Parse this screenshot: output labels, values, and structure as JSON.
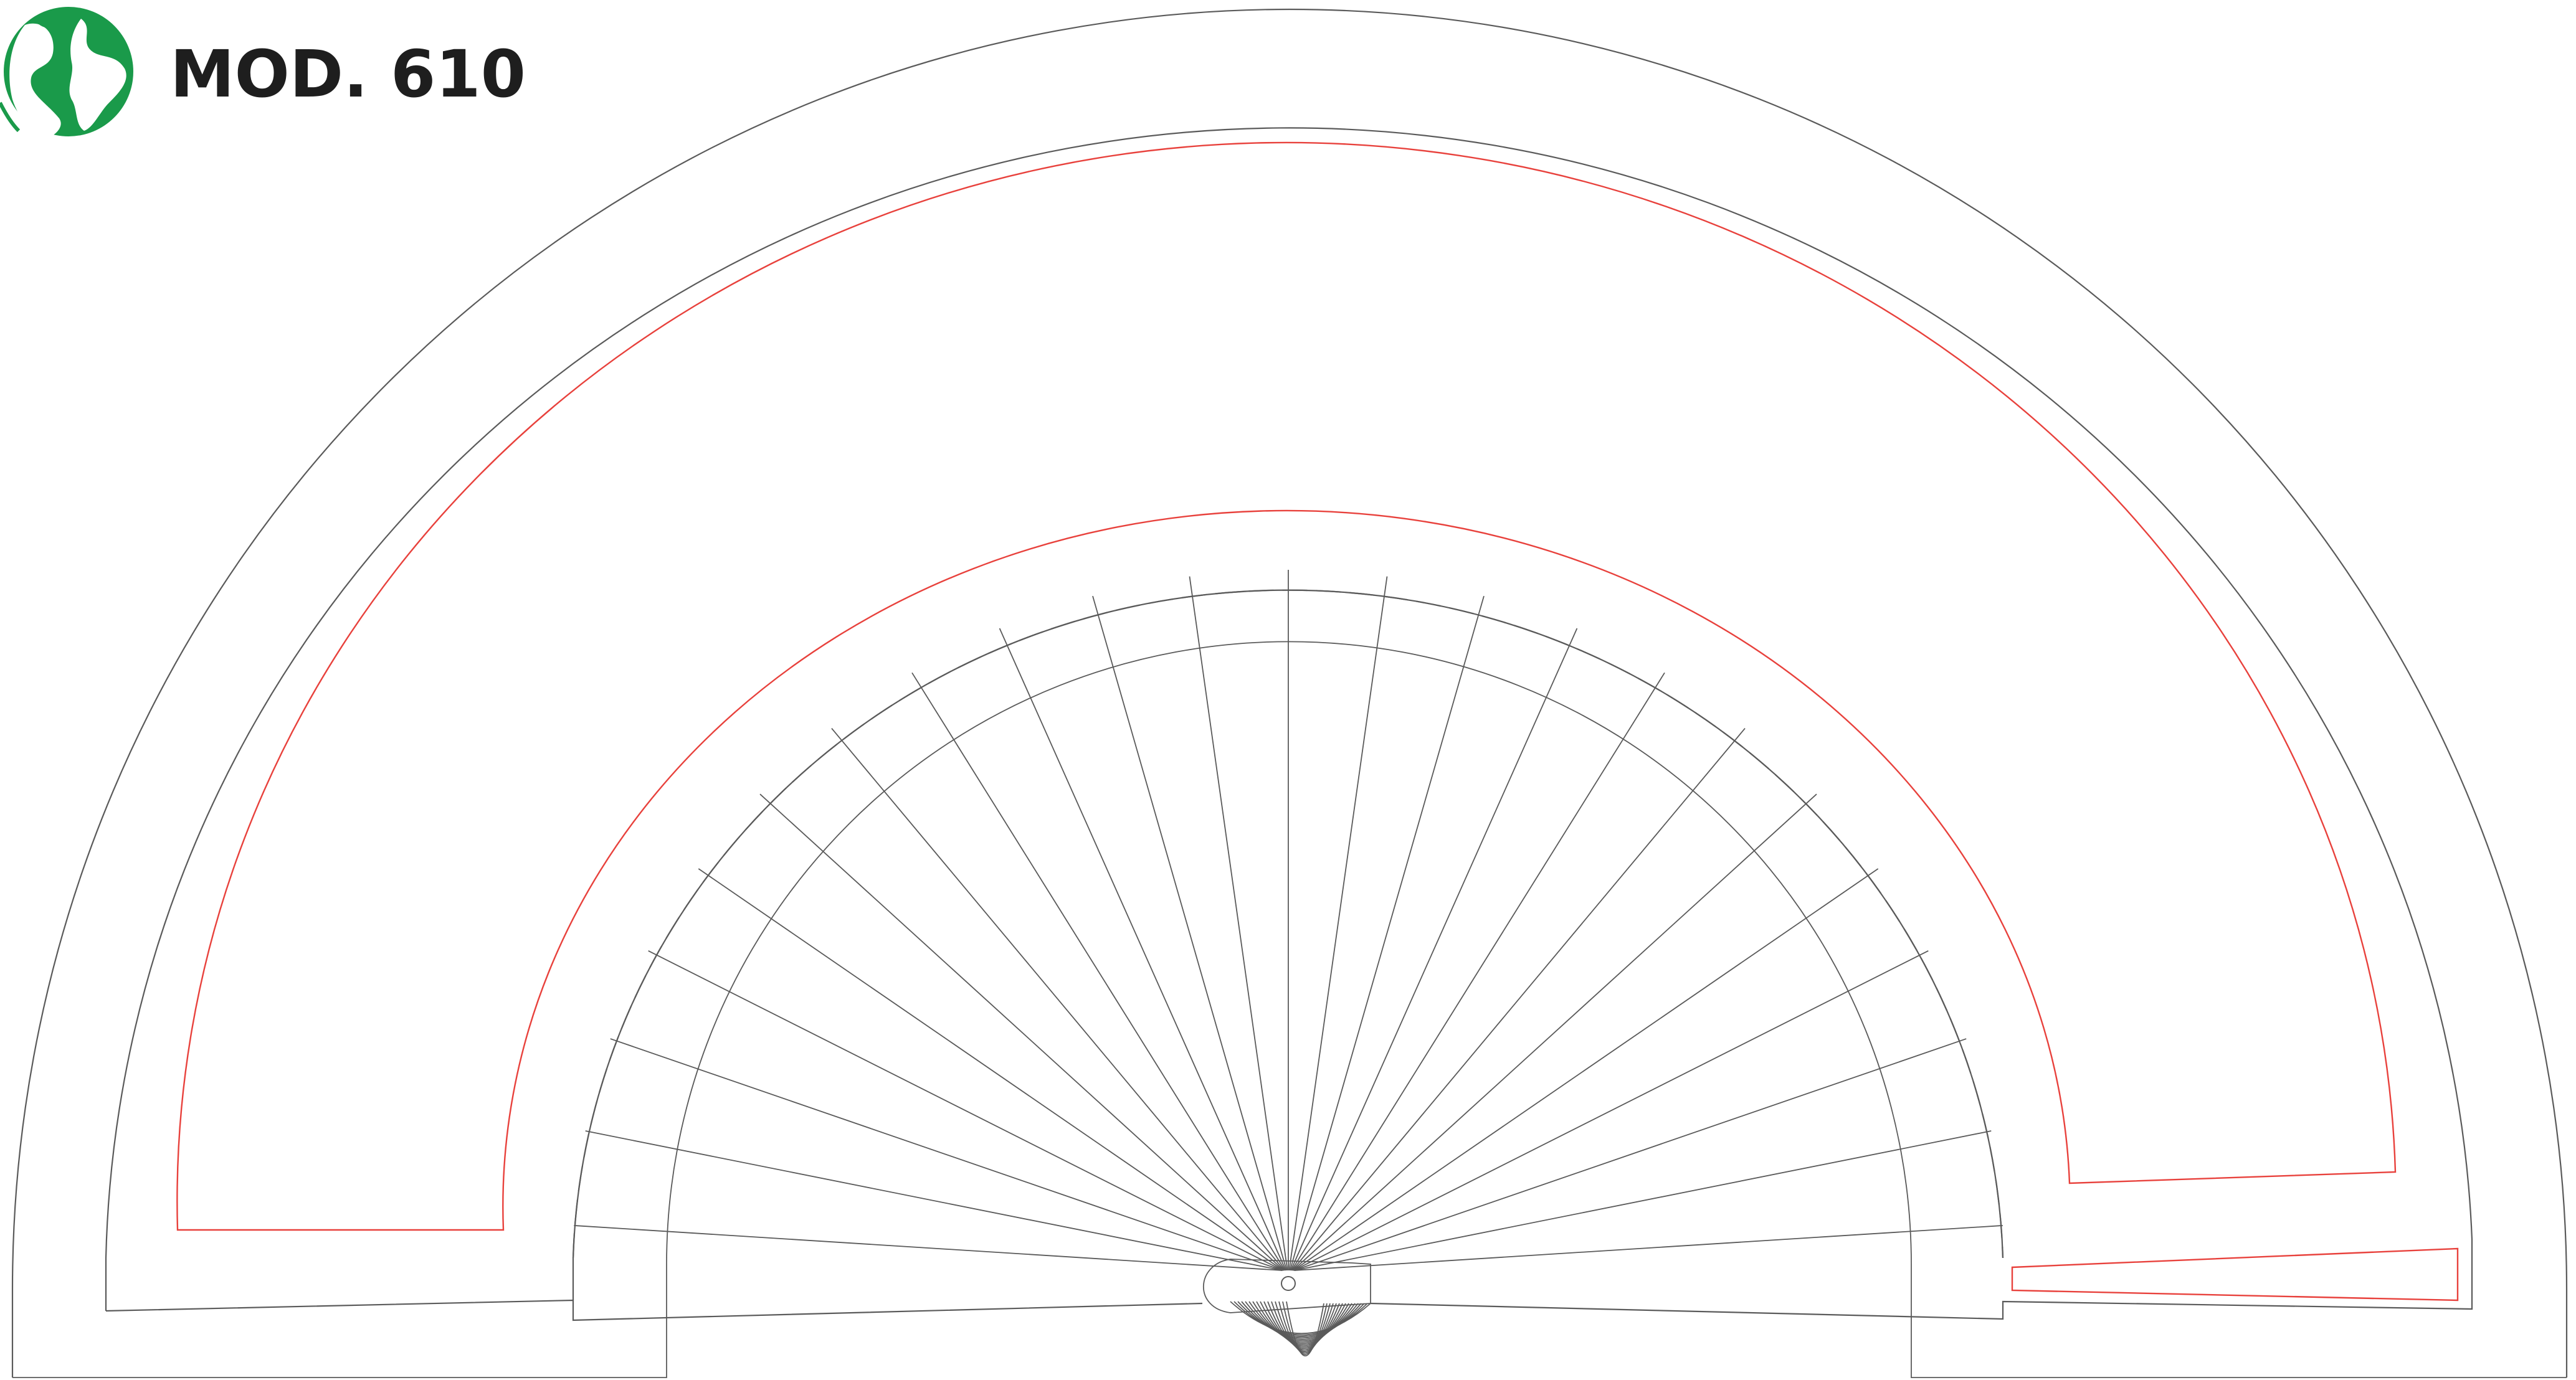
{
  "header": {
    "model_label": "MOD. 610"
  },
  "logo": {
    "icon": "globe-icon",
    "color": "#1a9a4a"
  },
  "colors": {
    "cut_line": "#5a5a5a",
    "print_area": "#e8413c"
  },
  "fan": {
    "rib_count": 22
  }
}
